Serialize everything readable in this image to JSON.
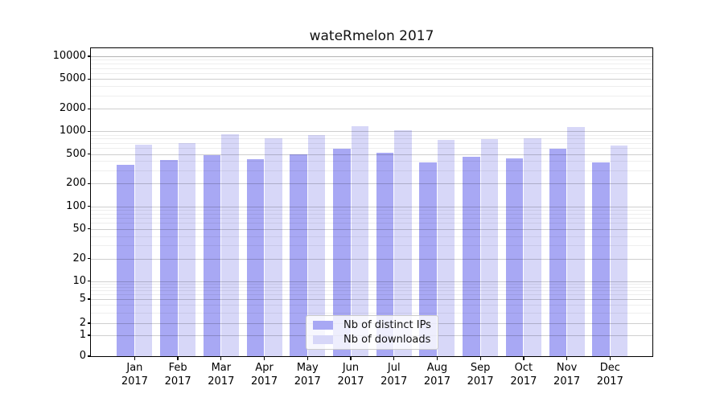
{
  "chart_data": {
    "type": "bar",
    "title": "wateRmelon 2017",
    "year": "2017",
    "categories": [
      "Jan",
      "Feb",
      "Mar",
      "Apr",
      "May",
      "Jun",
      "Jul",
      "Aug",
      "Sep",
      "Oct",
      "Nov",
      "Dec"
    ],
    "series": [
      {
        "name": "Nb of distinct IPs",
        "color": "#a8a8f4",
        "values": [
          360,
          420,
          480,
          430,
          500,
          590,
          520,
          390,
          460,
          440,
          590,
          385
        ]
      },
      {
        "name": "Nb of downloads",
        "color": "#d7d7f8",
        "values": [
          660,
          690,
          910,
          800,
          900,
          1170,
          1040,
          760,
          780,
          810,
          1150,
          655
        ]
      }
    ],
    "y_scale": "symlog",
    "y_ticks": [
      0,
      1,
      2,
      5,
      10,
      20,
      50,
      100,
      200,
      500,
      1000,
      2000,
      5000,
      10000
    ],
    "ylim": [
      0,
      12800
    ],
    "xlabel": "",
    "ylabel": "",
    "grid": true,
    "legend_position": "lower center"
  }
}
